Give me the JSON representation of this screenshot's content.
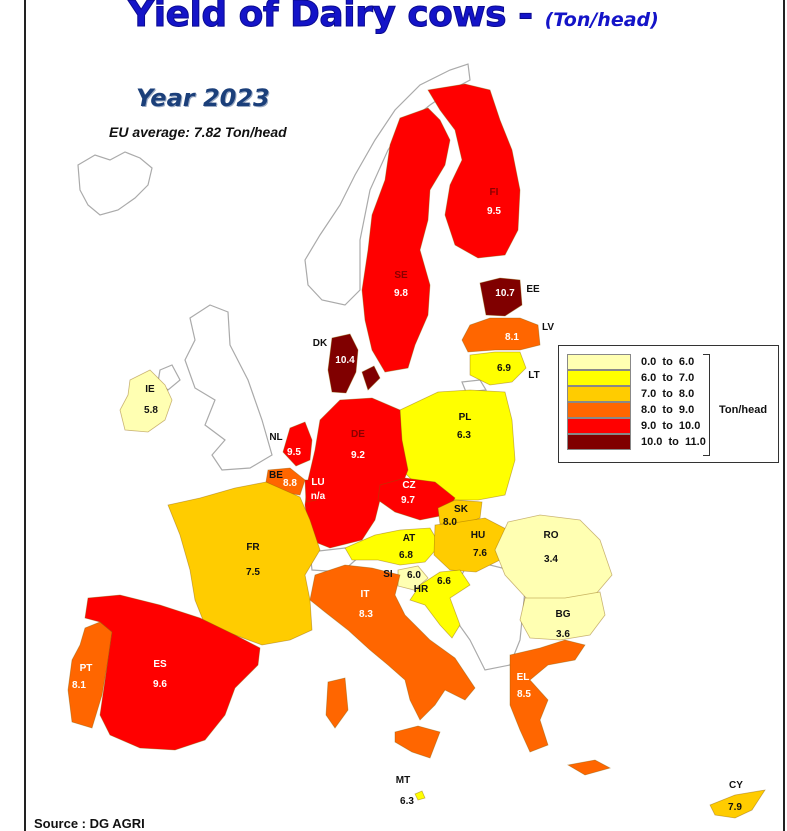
{
  "title": {
    "main": "Yield of Dairy cows - ",
    "unit": "(Ton/head)"
  },
  "year": "Year 2023",
  "eu_average": "EU average: 7.82 Ton/head",
  "source": "Source : DG AGRI",
  "legend": {
    "unit": "Ton/head",
    "classes": [
      {
        "label": "0.0  to  6.0",
        "color": "#ffffb2"
      },
      {
        "label": "6.0  to  7.0",
        "color": "#ffff00"
      },
      {
        "label": "7.0  to  8.0",
        "color": "#ffcc00"
      },
      {
        "label": "8.0  to  9.0",
        "color": "#ff6600"
      },
      {
        "label": "9.0  to  10.0",
        "color": "#ff0000"
      },
      {
        "label": "10.0  to  11.0",
        "color": "#800000"
      }
    ]
  },
  "countries": [
    {
      "code": "FI",
      "value": "9.5",
      "color": "#ff0000"
    },
    {
      "code": "SE",
      "value": "9.8",
      "color": "#ff0000"
    },
    {
      "code": "EE",
      "value": "10.7",
      "color": "#800000"
    },
    {
      "code": "LV",
      "value": "8.1",
      "color": "#ff6600"
    },
    {
      "code": "LT",
      "value": "6.9",
      "color": "#ffff00"
    },
    {
      "code": "DK",
      "value": "10.4",
      "color": "#800000"
    },
    {
      "code": "IE",
      "value": "5.8",
      "color": "#ffffb2"
    },
    {
      "code": "NL",
      "value": "9.5",
      "color": "#ff0000"
    },
    {
      "code": "PL",
      "value": "6.3",
      "color": "#ffff00"
    },
    {
      "code": "DE",
      "value": "9.2",
      "color": "#ff0000"
    },
    {
      "code": "BE",
      "value": "8.8",
      "color": "#ff6600"
    },
    {
      "code": "LU",
      "value": "n/a",
      "color": "#ff0000"
    },
    {
      "code": "CZ",
      "value": "9.7",
      "color": "#ff0000"
    },
    {
      "code": "SK",
      "value": "8.0",
      "color": "#ffcc00"
    },
    {
      "code": "FR",
      "value": "7.5",
      "color": "#ffcc00"
    },
    {
      "code": "AT",
      "value": "6.8",
      "color": "#ffff00"
    },
    {
      "code": "HU",
      "value": "7.6",
      "color": "#ffcc00"
    },
    {
      "code": "RO",
      "value": "3.4",
      "color": "#ffffb2"
    },
    {
      "code": "SI",
      "value": "6.0",
      "color": "#ffffb2"
    },
    {
      "code": "HR",
      "value": "6.6",
      "color": "#ffff00"
    },
    {
      "code": "IT",
      "value": "8.3",
      "color": "#ff6600"
    },
    {
      "code": "BG",
      "value": "3.6",
      "color": "#ffffb2"
    },
    {
      "code": "PT",
      "value": "8.1",
      "color": "#ff6600"
    },
    {
      "code": "ES",
      "value": "9.6",
      "color": "#ff0000"
    },
    {
      "code": "EL",
      "value": "8.5",
      "color": "#ff6600"
    },
    {
      "code": "MT",
      "value": "6.3",
      "color": "#ffff00"
    },
    {
      "code": "CY",
      "value": "7.9",
      "color": "#ffcc00"
    }
  ]
}
